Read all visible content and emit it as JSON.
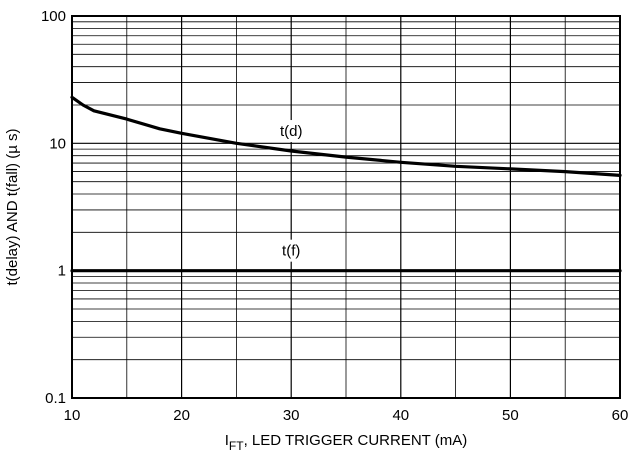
{
  "chart_data": {
    "type": "line",
    "title": "",
    "xlabel": {
      "symbol": "I",
      "subscript": "FT",
      "text": ", LED TRIGGER CURRENT (mA)"
    },
    "ylabel": "t(delay) AND t(fall) (µ s)",
    "xlim": [
      10,
      60
    ],
    "ylim": [
      0.1,
      100
    ],
    "yscale": "log",
    "grid": true,
    "legend": "none",
    "x_ticks": [
      10,
      20,
      30,
      40,
      50,
      60
    ],
    "x_tick_labels": [
      "10",
      "20",
      "30",
      "40",
      "50",
      "60"
    ],
    "y_ticks": [
      0.1,
      1,
      10,
      100
    ],
    "y_tick_labels": [
      "0.1",
      "1",
      "10",
      "100"
    ],
    "series": [
      {
        "name": "t(d)",
        "x": [
          10,
          11,
          12,
          15,
          18,
          20,
          25,
          30,
          35,
          40,
          45,
          50,
          55,
          60
        ],
        "y": [
          23,
          20,
          18,
          15.5,
          13,
          12,
          10,
          8.7,
          7.8,
          7.1,
          6.6,
          6.3,
          6.0,
          5.6
        ]
      },
      {
        "name": "t(f)",
        "x": [
          10,
          60
        ],
        "y": [
          1,
          1
        ]
      }
    ]
  }
}
